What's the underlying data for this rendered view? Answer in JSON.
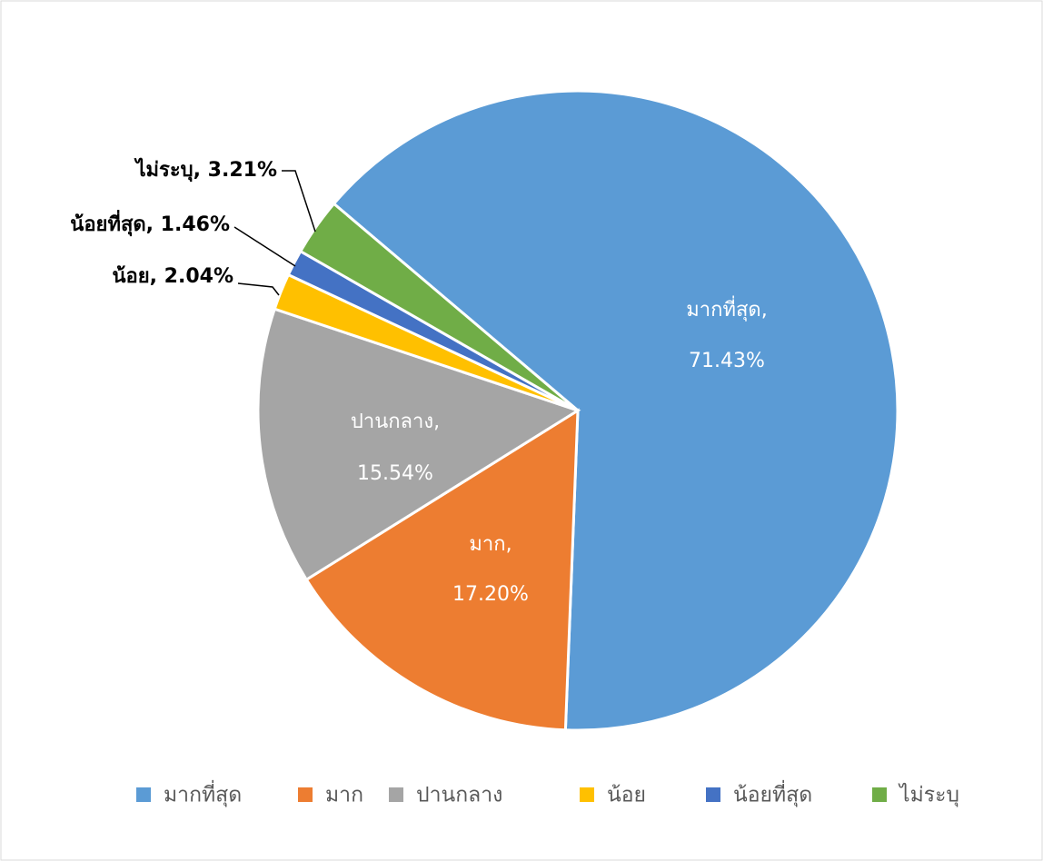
{
  "chart_data": {
    "type": "pie",
    "categories": [
      "มากที่สุด",
      "มาก",
      "ปานกลาง",
      "น้อย",
      "น้อยที่สุด",
      "ไม่ระบุ"
    ],
    "values": [
      71.43,
      17.2,
      15.54,
      2.04,
      1.46,
      3.21
    ],
    "value_labels": [
      "มากที่สุด, 71.43%",
      "มาก, 17.20%",
      "ปานกลาง, 15.54%",
      "น้อย, 2.04%",
      "น้อยที่สุด, 1.46%",
      "ไม่ระบุ, 3.21%"
    ],
    "colors": [
      "#5b9bd5",
      "#ed7d31",
      "#a5a5a5",
      "#ffc000",
      "#4472c4",
      "#70ad47"
    ],
    "legend": "bottom"
  }
}
